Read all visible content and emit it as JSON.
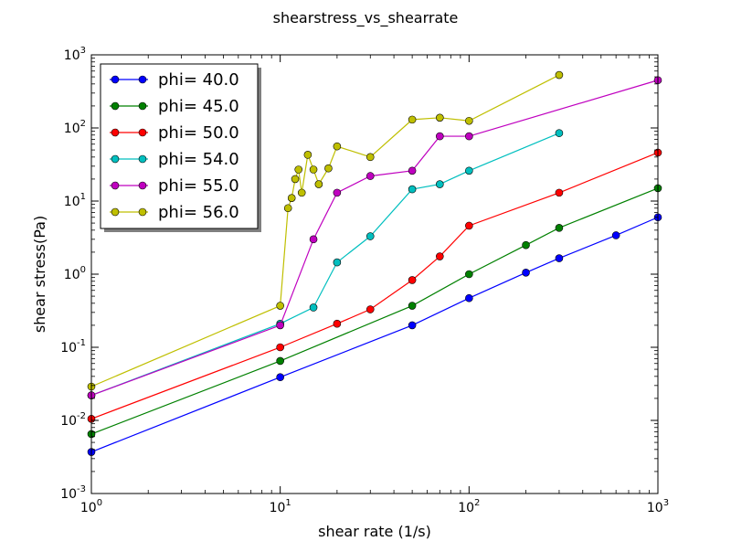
{
  "chart_data": {
    "type": "line",
    "title": "shearstress_vs_shearrate",
    "xlabel": "shear rate (1/s)",
    "ylabel": "shear stress(Pa)",
    "xscale": "log",
    "yscale": "log",
    "xlim": [
      1,
      1000
    ],
    "ylim": [
      0.001,
      1000
    ],
    "x_ticks": [
      {
        "value": 1,
        "base": "10",
        "exp": "0"
      },
      {
        "value": 10,
        "base": "10",
        "exp": "1"
      },
      {
        "value": 100,
        "base": "10",
        "exp": "2"
      },
      {
        "value": 1000,
        "base": "10",
        "exp": "3"
      }
    ],
    "y_ticks": [
      {
        "value": 0.001,
        "base": "10",
        "exp": "-3"
      },
      {
        "value": 0.01,
        "base": "10",
        "exp": "-2"
      },
      {
        "value": 0.1,
        "base": "10",
        "exp": "-1"
      },
      {
        "value": 1,
        "base": "10",
        "exp": "0"
      },
      {
        "value": 10,
        "base": "10",
        "exp": "1"
      },
      {
        "value": 100,
        "base": "10",
        "exp": "2"
      },
      {
        "value": 1000,
        "base": "10",
        "exp": "3"
      }
    ],
    "grid": false,
    "legend_position": "top-left",
    "series": [
      {
        "name": "phi= 40.0",
        "color": "#0000ff",
        "points": [
          [
            1,
            0.0037
          ],
          [
            10,
            0.039
          ],
          [
            50,
            0.2
          ],
          [
            100,
            0.47
          ],
          [
            200,
            1.05
          ],
          [
            300,
            1.65
          ],
          [
            600,
            3.4
          ],
          [
            1000,
            6.0
          ]
        ]
      },
      {
        "name": "phi= 45.0",
        "color": "#008000",
        "points": [
          [
            1,
            0.0065
          ],
          [
            10,
            0.065
          ],
          [
            50,
            0.37
          ],
          [
            100,
            1.0
          ],
          [
            200,
            2.5
          ],
          [
            300,
            4.3
          ],
          [
            1000,
            15.0
          ]
        ]
      },
      {
        "name": "phi= 50.0",
        "color": "#ff0000",
        "points": [
          [
            1,
            0.0105
          ],
          [
            10,
            0.1
          ],
          [
            20,
            0.21
          ],
          [
            30,
            0.33
          ],
          [
            50,
            0.83
          ],
          [
            70,
            1.75
          ],
          [
            100,
            4.6
          ],
          [
            300,
            13.0
          ],
          [
            1000,
            46.0
          ]
        ]
      },
      {
        "name": "phi= 54.0",
        "color": "#00bfbf",
        "points": [
          [
            1,
            0.022
          ],
          [
            10,
            0.21
          ],
          [
            15,
            0.35
          ],
          [
            20,
            1.45
          ],
          [
            30,
            3.3
          ],
          [
            50,
            14.5
          ],
          [
            70,
            17.0
          ],
          [
            100,
            26.0
          ],
          [
            300,
            85.0
          ]
        ]
      },
      {
        "name": "phi= 55.0",
        "color": "#bf00bf",
        "points": [
          [
            1,
            0.022
          ],
          [
            10,
            0.2
          ],
          [
            15,
            3.0
          ],
          [
            20,
            13.0
          ],
          [
            30,
            22.0
          ],
          [
            50,
            26.0
          ],
          [
            70,
            77.0
          ],
          [
            100,
            77.0
          ],
          [
            1000,
            450.0
          ]
        ]
      },
      {
        "name": "phi= 56.0",
        "color": "#bfbf00",
        "points": [
          [
            1,
            0.029
          ],
          [
            10,
            0.37
          ],
          [
            11,
            8.0
          ],
          [
            11.5,
            11.0
          ],
          [
            12,
            20.0
          ],
          [
            12.5,
            27.0
          ],
          [
            13,
            13.0
          ],
          [
            14,
            43.0
          ],
          [
            15,
            27.0
          ],
          [
            16,
            17.0
          ],
          [
            18,
            28.0
          ],
          [
            20,
            56.0
          ],
          [
            30,
            40.0
          ],
          [
            50,
            130.0
          ],
          [
            70,
            138.0
          ],
          [
            100,
            125.0
          ],
          [
            300,
            530.0
          ]
        ]
      }
    ]
  }
}
